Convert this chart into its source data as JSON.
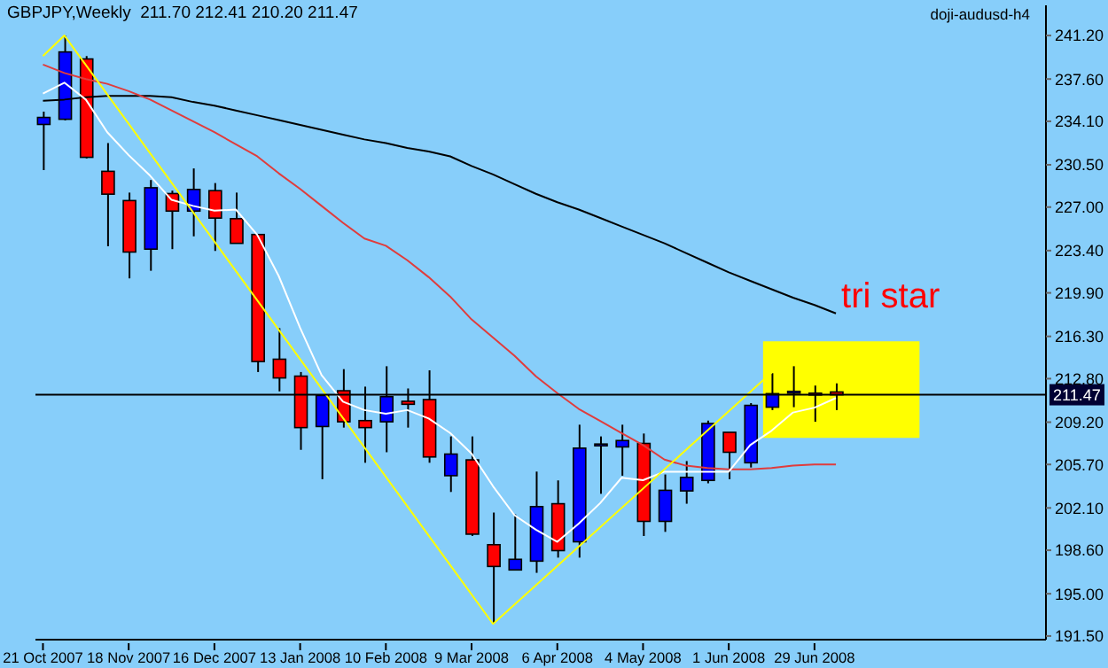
{
  "chart_data": {
    "type": "candlestick",
    "title": "GBPJPY,Weekly  211.70 212.41 210.20 211.47",
    "annotations": [
      "doji-audusd-h4"
    ],
    "categories": [
      "21 Oct 2007",
      null,
      null,
      null,
      "18 Nov 2007",
      null,
      null,
      null,
      "16 Dec 2007",
      null,
      null,
      null,
      "13 Jan 2008",
      null,
      null,
      null,
      "10 Feb 2008",
      null,
      null,
      null,
      "9 Mar 2008",
      null,
      null,
      null,
      "6 Apr 2008",
      null,
      null,
      null,
      "4 May 2008",
      null,
      null,
      null,
      "1 Jun 2008",
      null,
      null,
      null,
      "29 Jun 2008",
      null
    ],
    "ohlc": [
      [
        233.84,
        234.9,
        230.06,
        234.42
      ],
      [
        234.27,
        241.2,
        234.18,
        239.84
      ],
      [
        239.26,
        239.5,
        231.03,
        231.12
      ],
      [
        229.96,
        232.3,
        223.76,
        228.07
      ],
      [
        227.54,
        228.2,
        221.1,
        223.28
      ],
      [
        223.52,
        229.24,
        221.73,
        228.6
      ],
      [
        228.12,
        228.36,
        223.52,
        226.67
      ],
      [
        226.67,
        230.2,
        224.58,
        228.46
      ],
      [
        228.36,
        228.99,
        223.37,
        226.09
      ],
      [
        226.04,
        228.2,
        224.0,
        224.0
      ],
      [
        224.73,
        224.73,
        213.35,
        214.22
      ],
      [
        214.41,
        216.98,
        211.75,
        212.86
      ],
      [
        213.01,
        213.35,
        206.91,
        208.75
      ],
      [
        208.84,
        211.41,
        204.48,
        211.41
      ],
      [
        211.8,
        213.59,
        208.75,
        209.23
      ],
      [
        209.33,
        212.14,
        205.84,
        208.75
      ],
      [
        209.23,
        213.83,
        206.71,
        211.31
      ],
      [
        210.93,
        211.99,
        208.75,
        210.68
      ],
      [
        211.07,
        213.49,
        205.84,
        206.32
      ],
      [
        204.77,
        208.02,
        203.42,
        206.56
      ],
      [
        206.08,
        208.02,
        199.78,
        199.93
      ],
      [
        199.06,
        201.72,
        192.52,
        197.26
      ],
      [
        196.97,
        201.57,
        196.97,
        197.85
      ],
      [
        197.7,
        205.11,
        196.73,
        202.21
      ],
      [
        202.45,
        204.38,
        197.99,
        198.57
      ],
      [
        199.3,
        208.99,
        197.99,
        207.05
      ],
      [
        207.29,
        208.02,
        203.27,
        207.39
      ],
      [
        207.15,
        208.99,
        204.77,
        207.68
      ],
      [
        207.44,
        208.26,
        199.78,
        200.99
      ],
      [
        200.99,
        204.87,
        200.12,
        203.56
      ],
      [
        203.51,
        205.98,
        202.45,
        204.63
      ],
      [
        204.38,
        209.33,
        204.14,
        209.09
      ],
      [
        208.36,
        208.36,
        204.48,
        206.71
      ],
      [
        205.84,
        210.78,
        205.45,
        210.59
      ],
      [
        210.44,
        213.25,
        210.2,
        211.56
      ],
      [
        211.65,
        213.83,
        210.44,
        211.75
      ],
      [
        211.6,
        212.23,
        209.23,
        211.56
      ],
      [
        211.7,
        212.41,
        210.2,
        211.47
      ]
    ],
    "colors": [
      "#0000ff",
      "#0000ff",
      "#ff0000",
      "#ff0000",
      "#ff0000",
      "#0000ff",
      "#ff0000",
      "#0000ff",
      "#ff0000",
      "#ff0000",
      "#ff0000",
      "#ff0000",
      "#ff0000",
      "#0000ff",
      "#ff0000",
      "#ff0000",
      "#0000ff",
      "#ff0000",
      "#ff0000",
      "#0000ff",
      "#ff0000",
      "#ff0000",
      "#0000ff",
      "#0000ff",
      "#ff0000",
      "#0000ff",
      "#0000ff",
      "#0000ff",
      "#ff0000",
      "#0000ff",
      "#0000ff",
      "#0000ff",
      "#ff0000",
      "#0000ff",
      "#0000ff",
      "#0000ff",
      "#ff0000",
      "#ff0000"
    ],
    "series": [
      {
        "type": "line",
        "color": "#000000",
        "values": [
          235.8,
          235.9,
          236.1,
          236.2,
          236.2,
          236.2,
          236.1,
          235.7,
          235.4,
          235.0,
          234.6,
          234.2,
          233.8,
          233.4,
          233.0,
          232.6,
          232.3,
          231.9,
          231.6,
          231.2,
          230.4,
          229.7,
          228.9,
          228.1,
          227.4,
          226.8,
          226.1,
          225.4,
          224.7,
          224.0,
          223.2,
          222.4,
          221.6,
          220.9,
          220.2,
          219.5,
          218.9,
          218.2
        ]
      },
      {
        "type": "line",
        "color": "#e03c3c",
        "values": [
          238.8,
          238.1,
          237.6,
          237.2,
          236.6,
          235.9,
          235.0,
          234.1,
          233.2,
          232.2,
          231.2,
          229.8,
          228.5,
          227.1,
          225.7,
          224.4,
          223.8,
          222.6,
          221.2,
          219.6,
          217.7,
          216.2,
          214.7,
          213.0,
          211.6,
          210.3,
          209.3,
          208.3,
          207.3,
          206.1,
          205.6,
          205.4,
          205.3,
          205.3,
          205.4,
          205.6,
          205.7,
          205.7
        ]
      },
      {
        "type": "line",
        "color": "#ffffff",
        "values": [
          236.4,
          237.3,
          235.9,
          233.2,
          231.3,
          229.6,
          227.6,
          227.1,
          226.7,
          226.8,
          224.7,
          221.3,
          217.0,
          213.1,
          210.9,
          210.2,
          209.9,
          210.2,
          209.5,
          208.3,
          206.6,
          203.9,
          201.5,
          200.3,
          199.3,
          200.8,
          202.5,
          204.6,
          204.4,
          205.1,
          205.1,
          205.1,
          205.1,
          207.3,
          208.5,
          210.0,
          210.4,
          211.2
        ]
      },
      {
        "type": "line",
        "color": "#ffff00",
        "values": [
          239.5,
          241.2,
          null,
          null,
          null,
          null,
          null,
          null,
          null,
          null,
          null,
          null,
          null,
          null,
          null,
          null,
          null,
          null,
          null,
          null,
          null,
          192.5,
          null,
          null,
          null,
          null,
          null,
          null,
          null,
          null,
          null,
          null,
          null,
          null,
          213.3,
          null,
          null,
          null
        ]
      }
    ],
    "ylim": [
      191.2,
      243.7
    ],
    "yticks": [
      {
        "value": 241.2,
        "label": "241.20"
      },
      {
        "value": 237.6,
        "label": "237.60"
      },
      {
        "value": 234.1,
        "label": "234.10"
      },
      {
        "value": 230.5,
        "label": "230.50"
      },
      {
        "value": 227,
        "label": "227.00"
      },
      {
        "value": 223.4,
        "label": "223.40"
      },
      {
        "value": 219.9,
        "label": "219.90"
      },
      {
        "value": 216.3,
        "label": "216.30"
      },
      {
        "value": 212.8,
        "label": "212.80"
      },
      {
        "value": 209.2,
        "label": "209.20"
      },
      {
        "value": 205.7,
        "label": "205.70"
      },
      {
        "value": 202.1,
        "label": "202.10"
      },
      {
        "value": 198.6,
        "label": "198.60"
      },
      {
        "value": 195,
        "label": "195.00"
      },
      {
        "value": 191.5,
        "label": "191.50"
      }
    ],
    "ref_lines": [
      {
        "axis": "y",
        "value": 211.47,
        "label": "211.47",
        "color": "#000000"
      }
    ],
    "bands": [
      {
        "axis": "y",
        "from": 207.9,
        "to": 215.9,
        "label": "tri star",
        "color": "#ffff00"
      }
    ],
    "grid": false
  }
}
